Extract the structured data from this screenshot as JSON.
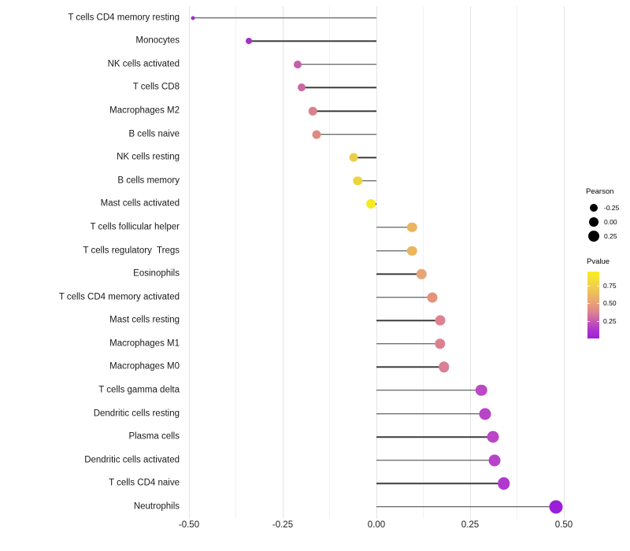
{
  "chart_data": {
    "type": "scatter",
    "variant": "lollipop",
    "title": "",
    "xlabel": "",
    "ylabel": "",
    "grid": true,
    "x_axis": {
      "tick_labels": [
        "-0.50",
        "-0.25",
        "0.00",
        "0.25",
        "0.50"
      ],
      "tick_values": [
        -0.5,
        -0.25,
        0,
        0.25,
        0.5
      ],
      "minor_tick_values": [
        -0.375,
        -0.125,
        0.125,
        0.375
      ],
      "range": [
        -0.54,
        0.53
      ]
    },
    "points": [
      {
        "label": "T cells CD4 memory resting",
        "pearson": -0.49,
        "pvalue": 0.01,
        "color": "#9a30d0",
        "size": 5
      },
      {
        "label": "Monocytes",
        "pearson": -0.34,
        "pvalue": 0.07,
        "color": "#a232cc",
        "size": 8
      },
      {
        "label": "NK cells activated",
        "pearson": -0.21,
        "pvalue": 0.3,
        "color": "#c75fa8",
        "size": 10
      },
      {
        "label": "T cells CD8",
        "pearson": -0.2,
        "pvalue": 0.32,
        "color": "#cc699e",
        "size": 10
      },
      {
        "label": "Macrophages M2",
        "pearson": -0.17,
        "pvalue": 0.42,
        "color": "#da8289",
        "size": 10.5
      },
      {
        "label": "B cells naive",
        "pearson": -0.16,
        "pvalue": 0.45,
        "color": "#dd8a80",
        "size": 11
      },
      {
        "label": "NK cells resting",
        "pearson": -0.06,
        "pvalue": 0.78,
        "color": "#e9ce4a",
        "size": 11
      },
      {
        "label": "B cells memory",
        "pearson": -0.05,
        "pvalue": 0.8,
        "color": "#ecd441",
        "size": 11.5
      },
      {
        "label": "Mast cells activated",
        "pearson": -0.015,
        "pvalue": 0.93,
        "color": "#f4ea1f",
        "size": 12
      },
      {
        "label": "T cells follicular helper",
        "pearson": 0.095,
        "pvalue": 0.66,
        "color": "#ebb55e",
        "size": 12.5
      },
      {
        "label": "T cells regulatory  Tregs",
        "pearson": 0.095,
        "pvalue": 0.66,
        "color": "#ebb55e",
        "size": 12.5
      },
      {
        "label": "Eosinophils",
        "pearson": 0.12,
        "pvalue": 0.58,
        "color": "#e9a476",
        "size": 12.5
      },
      {
        "label": "T cells CD4 memory activated",
        "pearson": 0.15,
        "pvalue": 0.5,
        "color": "#e69179",
        "size": 13
      },
      {
        "label": "Mast cells resting",
        "pearson": 0.17,
        "pvalue": 0.45,
        "color": "#dd8290",
        "size": 13
      },
      {
        "label": "Macrophages M1",
        "pearson": 0.17,
        "pvalue": 0.44,
        "color": "#dc8090",
        "size": 13.5
      },
      {
        "label": "Macrophages M0",
        "pearson": 0.18,
        "pvalue": 0.42,
        "color": "#d97f96",
        "size": 13.5
      },
      {
        "label": "T cells gamma delta",
        "pearson": 0.28,
        "pvalue": 0.16,
        "color": "#bb49c4",
        "size": 14.5
      },
      {
        "label": "Dendritic cells resting",
        "pearson": 0.29,
        "pvalue": 0.14,
        "color": "#b844c8",
        "size": 15
      },
      {
        "label": "Plasma cells",
        "pearson": 0.31,
        "pvalue": 0.15,
        "color": "#bb46c6",
        "size": 15
      },
      {
        "label": "Dendritic cells activated",
        "pearson": 0.315,
        "pvalue": 0.14,
        "color": "#b942ca",
        "size": 15
      },
      {
        "label": "T cells CD4 naive",
        "pearson": 0.34,
        "pvalue": 0.11,
        "color": "#b138cf",
        "size": 15.5
      },
      {
        "label": "Neutrophils",
        "pearson": 0.48,
        "pvalue": 0.02,
        "color": "#9b1fd8",
        "size": 17
      }
    ],
    "legends": {
      "size_legend": {
        "title": "Pearson",
        "entries": [
          {
            "label": "-0.25",
            "diameter": 10
          },
          {
            "label": "0.00",
            "diameter": 12
          },
          {
            "label": "0.25",
            "diameter": 14
          }
        ]
      },
      "color_legend": {
        "title": "Pvalue",
        "tick_entries": [
          {
            "label": "0.75",
            "frac_from_top": 0.21
          },
          {
            "label": "0.50",
            "frac_from_top": 0.47
          },
          {
            "label": "0.25",
            "frac_from_top": 0.74
          }
        ],
        "gradient_stops_bottom_to_top": [
          {
            "pos": 0.0,
            "color": "#9b1fd8"
          },
          {
            "pos": 0.13,
            "color": "#ae35cd"
          },
          {
            "pos": 0.26,
            "color": "#c55bb0"
          },
          {
            "pos": 0.4,
            "color": "#dd8690"
          },
          {
            "pos": 0.53,
            "color": "#e8a176"
          },
          {
            "pos": 0.66,
            "color": "#edba60"
          },
          {
            "pos": 0.8,
            "color": "#f2d348"
          },
          {
            "pos": 1.0,
            "color": "#f8ee22"
          }
        ],
        "value_range_bottom_to_top": [
          0.0,
          0.95
        ]
      }
    }
  }
}
